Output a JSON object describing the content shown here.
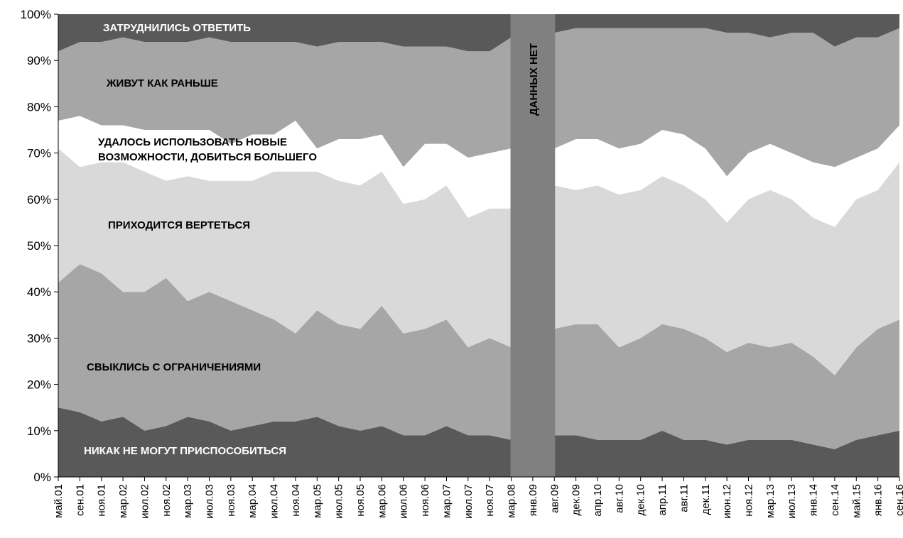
{
  "chart_data": {
    "type": "area",
    "stacked": true,
    "percent": true,
    "grid": false,
    "legend": "none",
    "ylim": [
      0,
      100
    ],
    "y_ticks": [
      "0%",
      "10%",
      "20%",
      "30%",
      "40%",
      "50%",
      "60%",
      "70%",
      "80%",
      "90%",
      "100%"
    ],
    "x_tick_labels": [
      "май.01",
      "сен.01",
      "ноя.01",
      "мар.02",
      "июл.02",
      "ноя.02",
      "мар.03",
      "июл.03",
      "ноя.03",
      "мар.04",
      "июл.04",
      "ноя.04",
      "мар.05",
      "июл.05",
      "ноя.05",
      "мар.06",
      "июл.06",
      "ноя.06",
      "мар.07",
      "июл.07",
      "ноя.07",
      "мар.08",
      "янв.09",
      "авг.09",
      "дек.09",
      "апр.10",
      "авг.10",
      "дек.10",
      "апр.11",
      "авг.11",
      "дек.11",
      "июн.12",
      "ноя.12",
      "мар.13",
      "июл.13",
      "янв.14",
      "сен.14",
      "май.15",
      "янв.16",
      "сен.16"
    ],
    "gap": {
      "after_index": 21,
      "before_index": 23,
      "label": "ДАННЫХ НЕТ"
    },
    "boundaries_percent": {
      "b1": [
        15,
        14,
        12,
        13,
        10,
        11,
        13,
        12,
        10,
        11,
        12,
        12,
        13,
        11,
        10,
        11,
        9,
        9,
        11,
        9,
        9,
        8,
        null,
        9,
        9,
        8,
        8,
        8,
        10,
        8,
        8,
        7,
        8,
        8,
        8,
        7,
        6,
        8,
        9,
        10
      ],
      "b2": [
        42,
        46,
        44,
        40,
        40,
        43,
        38,
        40,
        38,
        36,
        34,
        31,
        36,
        33,
        32,
        37,
        31,
        32,
        34,
        28,
        30,
        28,
        null,
        32,
        33,
        33,
        28,
        30,
        33,
        32,
        30,
        27,
        29,
        28,
        29,
        26,
        22,
        28,
        32,
        34
      ],
      "b3": [
        71,
        67,
        68,
        68,
        66,
        64,
        65,
        64,
        64,
        64,
        66,
        66,
        66,
        64,
        63,
        66,
        59,
        60,
        63,
        56,
        58,
        58,
        null,
        63,
        62,
        63,
        61,
        62,
        65,
        63,
        60,
        55,
        60,
        62,
        60,
        56,
        54,
        60,
        62,
        68
      ],
      "b4": [
        77,
        78,
        76,
        76,
        75,
        75,
        75,
        75,
        72,
        74,
        74,
        77,
        71,
        73,
        73,
        74,
        67,
        72,
        72,
        69,
        70,
        71,
        null,
        71,
        73,
        73,
        71,
        72,
        75,
        74,
        71,
        65,
        70,
        72,
        70,
        68,
        67,
        69,
        71,
        76
      ],
      "b5": [
        92,
        94,
        94,
        95,
        94,
        94,
        94,
        95,
        94,
        94,
        94,
        94,
        93,
        94,
        94,
        94,
        93,
        93,
        93,
        92,
        92,
        95,
        null,
        96,
        97,
        97,
        97,
        97,
        97,
        97,
        97,
        96,
        96,
        95,
        96,
        96,
        93,
        95,
        95,
        97
      ]
    },
    "series": [
      {
        "name": "НИКАК НЕ МОГУТ ПРИСПОСОБИТЬСЯ",
        "color": "#595959",
        "label_color": "#ffffff"
      },
      {
        "name": "СВЫКЛИСЬ С ОГРАНИЧЕНИЯМИ",
        "color": "#a6a6a6",
        "label_color": "#000000"
      },
      {
        "name": "ПРИХОДИТСЯ ВЕРТЕТЬСЯ",
        "color": "#d9d9d9",
        "label_color": "#000000"
      },
      {
        "name": "УДАЛОСЬ ИСПОЛЬЗОВАТЬ НОВЫЕ ВОЗМОЖНОСТИ, ДОБИТЬСЯ БОЛЬШЕГО",
        "label_lines": [
          "УДАЛОСЬ ИСПОЛЬЗОВАТЬ НОВЫЕ",
          "ВОЗМОЖНОСТИ, ДОБИТЬСЯ БОЛЬШЕГО"
        ],
        "color": "#ffffff",
        "label_color": "#000000"
      },
      {
        "name": "ЖИВУТ КАК РАНЬШЕ",
        "color": "#a6a6a6",
        "label_color": "#000000"
      },
      {
        "name": "ЗАТРУДНИЛИСЬ ОТВЕТИТЬ",
        "color": "#595959",
        "label_color": "#ffffff"
      }
    ],
    "gap_color": "#808080"
  }
}
